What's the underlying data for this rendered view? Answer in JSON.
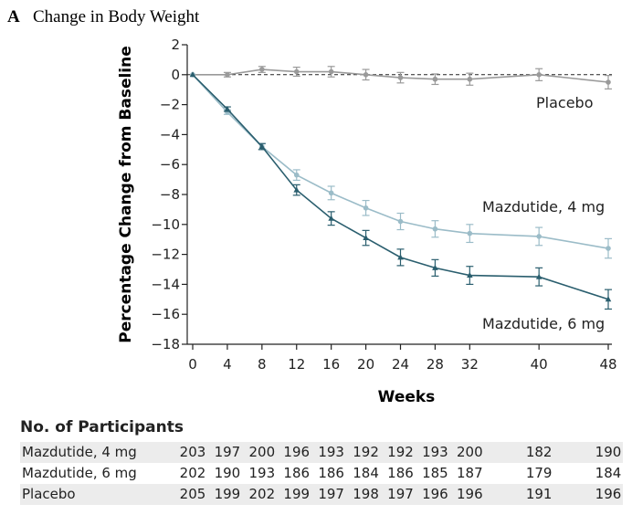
{
  "panel": {
    "letter": "A",
    "title": "Change in Body Weight"
  },
  "colors": {
    "placebo": "#9a9a9a",
    "mazdutide_4mg": "#9bbcc8",
    "mazdutide_6mg": "#2a5e6e",
    "axis": "#222222"
  },
  "chart_data": {
    "type": "line",
    "title": "Change in Body Weight",
    "xlabel": "Weeks",
    "ylabel": "Percentage Change from Baseline",
    "xticks": [
      0,
      4,
      8,
      12,
      16,
      20,
      24,
      28,
      32,
      40,
      48
    ],
    "yticks": [
      2,
      0,
      -2,
      -4,
      -6,
      -8,
      -10,
      -12,
      -14,
      -16,
      -18
    ],
    "xlim": [
      0,
      48
    ],
    "ylim": [
      -18,
      2
    ],
    "reference_line": 0,
    "series": [
      {
        "name": "Placebo",
        "color": "#9a9a9a",
        "marker": "circle",
        "points": [
          {
            "x": 0,
            "y": 0,
            "err": 0
          },
          {
            "x": 4,
            "y": 0.0,
            "err": 0.15
          },
          {
            "x": 8,
            "y": 0.35,
            "err": 0.2
          },
          {
            "x": 12,
            "y": 0.2,
            "err": 0.3
          },
          {
            "x": 16,
            "y": 0.2,
            "err": 0.35
          },
          {
            "x": 20,
            "y": 0.0,
            "err": 0.35
          },
          {
            "x": 24,
            "y": -0.2,
            "err": 0.35
          },
          {
            "x": 28,
            "y": -0.3,
            "err": 0.35
          },
          {
            "x": 32,
            "y": -0.3,
            "err": 0.4
          },
          {
            "x": 40,
            "y": 0.0,
            "err": 0.4
          },
          {
            "x": 48,
            "y": -0.5,
            "err": 0.45
          }
        ]
      },
      {
        "name": "Mazdutide, 4 mg",
        "color": "#9bbcc8",
        "marker": "circle",
        "points": [
          {
            "x": 0,
            "y": 0,
            "err": 0
          },
          {
            "x": 4,
            "y": -2.5,
            "err": 0.15
          },
          {
            "x": 8,
            "y": -4.8,
            "err": 0.2
          },
          {
            "x": 12,
            "y": -6.7,
            "err": 0.35
          },
          {
            "x": 16,
            "y": -7.9,
            "err": 0.45
          },
          {
            "x": 20,
            "y": -8.9,
            "err": 0.5
          },
          {
            "x": 24,
            "y": -9.8,
            "err": 0.55
          },
          {
            "x": 28,
            "y": -10.3,
            "err": 0.55
          },
          {
            "x": 32,
            "y": -10.6,
            "err": 0.6
          },
          {
            "x": 40,
            "y": -10.8,
            "err": 0.6
          },
          {
            "x": 48,
            "y": -11.6,
            "err": 0.65
          }
        ]
      },
      {
        "name": "Mazdutide, 6 mg",
        "color": "#2a5e6e",
        "marker": "triangle",
        "points": [
          {
            "x": 0,
            "y": 0,
            "err": 0
          },
          {
            "x": 4,
            "y": -2.3,
            "err": 0.15
          },
          {
            "x": 8,
            "y": -4.8,
            "err": 0.2
          },
          {
            "x": 12,
            "y": -7.7,
            "err": 0.35
          },
          {
            "x": 16,
            "y": -9.6,
            "err": 0.45
          },
          {
            "x": 20,
            "y": -10.9,
            "err": 0.5
          },
          {
            "x": 24,
            "y": -12.2,
            "err": 0.55
          },
          {
            "x": 28,
            "y": -12.9,
            "err": 0.55
          },
          {
            "x": 32,
            "y": -13.4,
            "err": 0.6
          },
          {
            "x": 40,
            "y": -13.5,
            "err": 0.6
          },
          {
            "x": 48,
            "y": -15.0,
            "err": 0.65
          }
        ]
      }
    ],
    "annotations": [
      {
        "text": "Placebo",
        "series": "Placebo"
      },
      {
        "text": "Mazdutide, 4 mg",
        "series": "Mazdutide, 4 mg"
      },
      {
        "text": "Mazdutide, 6 mg",
        "series": "Mazdutide, 6 mg"
      }
    ]
  },
  "participants": {
    "title": "No. of Participants",
    "weeks": [
      0,
      4,
      8,
      12,
      16,
      20,
      24,
      28,
      32,
      40,
      48
    ],
    "rows": [
      {
        "label": "Mazdutide, 4 mg",
        "values": [
          "203",
          "197",
          "200",
          "196",
          "193",
          "192",
          "192",
          "193",
          "200",
          "182",
          "190"
        ]
      },
      {
        "label": "Mazdutide, 6 mg",
        "values": [
          "202",
          "190",
          "193",
          "186",
          "186",
          "184",
          "186",
          "185",
          "187",
          "179",
          "184"
        ]
      },
      {
        "label": "Placebo",
        "values": [
          "205",
          "199",
          "202",
          "199",
          "197",
          "198",
          "197",
          "196",
          "196",
          "191",
          "196"
        ]
      }
    ]
  }
}
